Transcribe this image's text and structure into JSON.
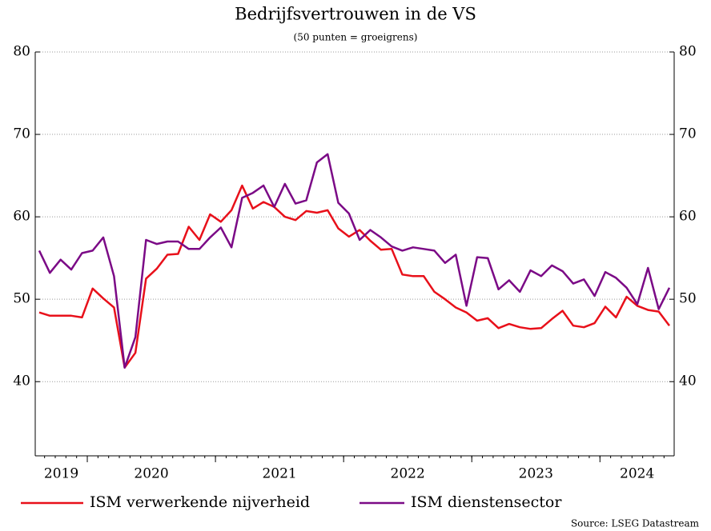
{
  "chart_data": {
    "type": "line",
    "title": "Bedrijfsvertrouwen in de VS",
    "subtitle": "(50 punten = groeigrens)",
    "source": "Source: LSEG Datastream",
    "categories": [
      "2019",
      null,
      null,
      null,
      null,
      "2020",
      null,
      null,
      null,
      null,
      null,
      null,
      null,
      null,
      null,
      null,
      null,
      "2021",
      null,
      null,
      null,
      null,
      null,
      null,
      null,
      null,
      null,
      null,
      null,
      "2022",
      null,
      null,
      null,
      null,
      null,
      null,
      null,
      null,
      null,
      null,
      null,
      "2023",
      null,
      null,
      null,
      null,
      null,
      null,
      null,
      null,
      null,
      null,
      null,
      "2024",
      null,
      null,
      null,
      null,
      null,
      null
    ],
    "series": [
      {
        "name": "ISM verwerkende nijverheid",
        "color": "#e8101a",
        "values": [
          48.4,
          48.0,
          48.0,
          48.0,
          47.8,
          51.3,
          50.1,
          49.0,
          41.7,
          43.5,
          52.5,
          53.7,
          55.4,
          55.5,
          58.8,
          57.2,
          60.3,
          59.4,
          60.8,
          63.8,
          61.0,
          61.8,
          61.2,
          60.0,
          59.6,
          60.7,
          60.5,
          60.8,
          58.6,
          57.6,
          58.4,
          57.1,
          56.0,
          56.1,
          53.0,
          52.8,
          52.8,
          50.9,
          50.0,
          49.0,
          48.4,
          47.4,
          47.7,
          46.5,
          47.0,
          46.6,
          46.4,
          46.5,
          47.6,
          48.6,
          46.8,
          46.6,
          47.1,
          49.1,
          47.8,
          50.3,
          49.2,
          48.7,
          48.5,
          46.8
        ]
      },
      {
        "name": "ISM dienstensector",
        "color": "#7b0a86",
        "values": [
          55.9,
          53.2,
          54.8,
          53.6,
          55.6,
          55.9,
          57.5,
          52.8,
          41.7,
          45.4,
          57.2,
          56.7,
          57.0,
          57.0,
          56.1,
          56.1,
          57.5,
          58.7,
          56.3,
          62.3,
          62.9,
          63.8,
          61.2,
          64.0,
          61.6,
          62.0,
          66.6,
          67.6,
          61.7,
          60.4,
          57.2,
          58.4,
          57.5,
          56.4,
          55.9,
          56.3,
          56.1,
          55.9,
          54.4,
          55.4,
          49.2,
          55.1,
          55.0,
          51.2,
          52.3,
          50.9,
          53.5,
          52.8,
          54.1,
          53.4,
          51.9,
          52.4,
          50.4,
          53.3,
          52.6,
          51.4,
          49.4,
          53.8,
          48.8,
          51.4
        ]
      }
    ],
    "ylim": [
      31,
      80
    ],
    "yticks": [
      40,
      50,
      60,
      70,
      80
    ],
    "y2lim": [
      31,
      80
    ],
    "y2ticks": [
      40,
      50,
      60,
      70,
      80
    ],
    "grid": true,
    "legend": "bottom"
  }
}
